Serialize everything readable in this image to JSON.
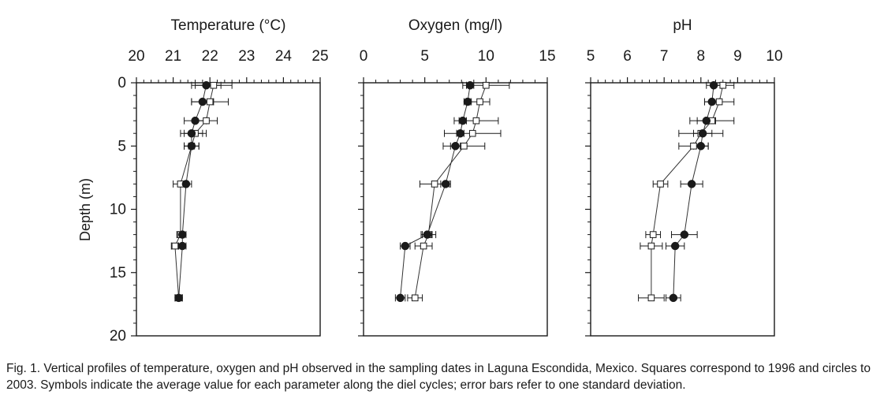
{
  "chart_data": [
    {
      "type": "line",
      "title": "Temperature (°C)",
      "xlim": [
        20,
        25
      ],
      "xticks": [
        "20",
        "21",
        "22",
        "23",
        "24",
        "25"
      ],
      "ylabel": "Depth (m)",
      "ylim": [
        0,
        20
      ],
      "yticks": [
        "0",
        "5",
        "10",
        "15",
        "20"
      ],
      "y_inverted": true,
      "series": [
        {
          "marker": "open-square",
          "points": [
            {
              "depth": 0.2,
              "value": 22.1,
              "sd": 0.5
            },
            {
              "depth": 1.5,
              "value": 22.0,
              "sd": 0.5
            },
            {
              "depth": 3.0,
              "value": 21.9,
              "sd": 0.3
            },
            {
              "depth": 4.0,
              "value": 21.6,
              "sd": 0.3
            },
            {
              "depth": 5.0,
              "value": 21.5,
              "sd": 0.2
            },
            {
              "depth": 8.0,
              "value": 21.2,
              "sd": 0.2
            },
            {
              "depth": 12.0,
              "value": 21.2,
              "sd": 0.1
            },
            {
              "depth": 12.9,
              "value": 21.05,
              "sd": 0.1
            },
            {
              "depth": 17.0,
              "value": 21.15,
              "sd": 0.1
            }
          ]
        },
        {
          "marker": "filled-circle",
          "points": [
            {
              "depth": 0.2,
              "value": 21.9,
              "sd": 0.4
            },
            {
              "depth": 1.5,
              "value": 21.8,
              "sd": 0.3
            },
            {
              "depth": 3.0,
              "value": 21.6,
              "sd": 0.3
            },
            {
              "depth": 4.0,
              "value": 21.5,
              "sd": 0.3
            },
            {
              "depth": 5.0,
              "value": 21.5,
              "sd": 0.2
            },
            {
              "depth": 8.0,
              "value": 21.35,
              "sd": 0.15
            },
            {
              "depth": 12.0,
              "value": 21.25,
              "sd": 0.1
            },
            {
              "depth": 12.9,
              "value": 21.25,
              "sd": 0.1
            },
            {
              "depth": 17.0,
              "value": 21.15,
              "sd": 0.1
            }
          ]
        }
      ]
    },
    {
      "type": "line",
      "title": "Oxygen (mg/l)",
      "xlim": [
        0,
        15
      ],
      "xticks": [
        "0",
        "5",
        "10",
        "15"
      ],
      "ylim": [
        0,
        20
      ],
      "y_inverted": true,
      "series": [
        {
          "marker": "open-square",
          "points": [
            {
              "depth": 0.2,
              "value": 10.0,
              "sd": 1.9
            },
            {
              "depth": 1.5,
              "value": 9.5,
              "sd": 0.8
            },
            {
              "depth": 3.0,
              "value": 9.2,
              "sd": 1.8
            },
            {
              "depth": 4.0,
              "value": 8.9,
              "sd": 2.3
            },
            {
              "depth": 5.0,
              "value": 8.2,
              "sd": 1.7
            },
            {
              "depth": 8.0,
              "value": 5.8,
              "sd": 1.2
            },
            {
              "depth": 12.0,
              "value": 5.3,
              "sd": 0.6
            },
            {
              "depth": 12.9,
              "value": 4.9,
              "sd": 0.7
            },
            {
              "depth": 17.0,
              "value": 4.2,
              "sd": 0.6
            }
          ]
        },
        {
          "marker": "filled-circle",
          "points": [
            {
              "depth": 0.2,
              "value": 8.7,
              "sd": 0.3
            },
            {
              "depth": 1.5,
              "value": 8.5,
              "sd": 0.3
            },
            {
              "depth": 3.0,
              "value": 8.1,
              "sd": 0.3
            },
            {
              "depth": 4.0,
              "value": 7.9,
              "sd": 0.3
            },
            {
              "depth": 5.0,
              "value": 7.5,
              "sd": 0.4
            },
            {
              "depth": 8.0,
              "value": 6.7,
              "sd": 0.4
            },
            {
              "depth": 12.0,
              "value": 5.2,
              "sd": 0.4
            },
            {
              "depth": 12.9,
              "value": 3.4,
              "sd": 0.4
            },
            {
              "depth": 17.0,
              "value": 3.0,
              "sd": 0.4
            }
          ]
        }
      ]
    },
    {
      "type": "line",
      "title": "pH",
      "xlim": [
        5,
        10
      ],
      "xticks": [
        "5",
        "6",
        "7",
        "8",
        "9",
        "10"
      ],
      "ylim": [
        0,
        20
      ],
      "y_inverted": true,
      "series": [
        {
          "marker": "open-square",
          "points": [
            {
              "depth": 0.2,
              "value": 8.6,
              "sd": 0.3
            },
            {
              "depth": 1.5,
              "value": 8.5,
              "sd": 0.4
            },
            {
              "depth": 3.0,
              "value": 8.3,
              "sd": 0.6
            },
            {
              "depth": 4.0,
              "value": 8.0,
              "sd": 0.6
            },
            {
              "depth": 5.0,
              "value": 7.8,
              "sd": 0.4
            },
            {
              "depth": 8.0,
              "value": 6.9,
              "sd": 0.2
            },
            {
              "depth": 12.0,
              "value": 6.7,
              "sd": 0.2
            },
            {
              "depth": 12.9,
              "value": 6.65,
              "sd": 0.3
            },
            {
              "depth": 17.0,
              "value": 6.65,
              "sd": 0.35
            }
          ]
        },
        {
          "marker": "filled-circle",
          "points": [
            {
              "depth": 0.2,
              "value": 8.35,
              "sd": 0.2
            },
            {
              "depth": 1.5,
              "value": 8.3,
              "sd": 0.2
            },
            {
              "depth": 3.0,
              "value": 8.15,
              "sd": 0.25
            },
            {
              "depth": 4.0,
              "value": 8.05,
              "sd": 0.25
            },
            {
              "depth": 5.0,
              "value": 8.0,
              "sd": 0.2
            },
            {
              "depth": 8.0,
              "value": 7.75,
              "sd": 0.3
            },
            {
              "depth": 12.0,
              "value": 7.55,
              "sd": 0.35
            },
            {
              "depth": 12.9,
              "value": 7.3,
              "sd": 0.25
            },
            {
              "depth": 17.0,
              "value": 7.25,
              "sd": 0.2
            }
          ]
        }
      ]
    }
  ],
  "caption": "Fig. 1. Vertical profiles of temperature, oxygen and pH observed in the sampling dates in Laguna Escondida, Mexico. Squares correspond to 1996 and circles to 2003. Symbols indicate the average value for each parameter along the diel cycles; error bars refer to one standard deviation."
}
